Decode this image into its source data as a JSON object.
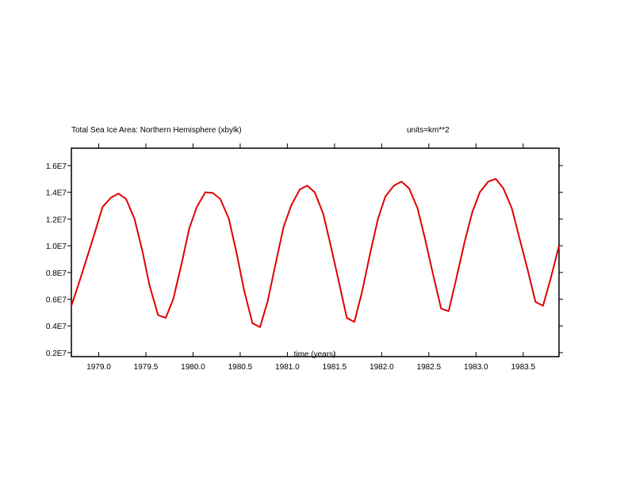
{
  "chart_data": {
    "type": "line",
    "title": "Total Sea Ice Area: Northern Hemisphere (xbylk)",
    "units": "units=km**2",
    "xlabel": "time (years)",
    "ylabel": "",
    "xlim": [
      1978.71,
      1983.88
    ],
    "ylim": [
      1700000.0,
      17300000.0
    ],
    "xticks": [
      1979.0,
      1979.5,
      1980.0,
      1980.5,
      1981.0,
      1981.5,
      1982.0,
      1982.5,
      1983.0,
      1983.5
    ],
    "xtick_labels": [
      "1979.0",
      "1979.5",
      "1980.0",
      "1980.5",
      "1981.0",
      "1981.5",
      "1982.0",
      "1982.5",
      "1983.0",
      "1983.5"
    ],
    "yticks": [
      2000000,
      4000000,
      6000000,
      8000000,
      10000000,
      12000000,
      14000000,
      16000000
    ],
    "ytick_labels": [
      "0.2E7",
      "0.4E7",
      "0.6E7",
      "0.8E7",
      "1.0E7",
      "1.2E7",
      "1.4E7",
      "1.6E7"
    ],
    "line_color": "#e00000",
    "series": [
      {
        "x": [
          1978.71,
          1978.79,
          1978.88,
          1978.96,
          1979.04,
          1979.13,
          1979.21,
          1979.29,
          1979.38,
          1979.46,
          1979.54,
          1979.63,
          1979.71,
          1979.79,
          1979.88,
          1979.96,
          1980.04,
          1980.13,
          1980.21,
          1980.29,
          1980.38,
          1980.46,
          1980.54,
          1980.63,
          1980.71,
          1980.79,
          1980.88,
          1980.96,
          1981.04,
          1981.13,
          1981.21,
          1981.29,
          1981.38,
          1981.46,
          1981.54,
          1981.63,
          1981.71,
          1981.79,
          1981.88,
          1981.96,
          1982.04,
          1982.13,
          1982.21,
          1982.29,
          1982.38,
          1982.46,
          1982.54,
          1982.63,
          1982.71,
          1982.79,
          1982.88,
          1982.96,
          1983.04,
          1983.13,
          1983.21,
          1983.29,
          1983.38,
          1983.46,
          1983.54,
          1983.63,
          1983.71,
          1983.79,
          1983.88
        ],
        "values": [
          5500000,
          7200000,
          9200000,
          11000000,
          12900000,
          13600000,
          13900000,
          13500000,
          12000000,
          9700000,
          7000000,
          4800000,
          4600000,
          6000000,
          8700000,
          11300000,
          12900000,
          14000000,
          13950000,
          13500000,
          12000000,
          9500000,
          6700000,
          4200000,
          3900000,
          5800000,
          8800000,
          11400000,
          13000000,
          14200000,
          14500000,
          14000000,
          12400000,
          10000000,
          7500000,
          4600000,
          4300000,
          6500000,
          9500000,
          12000000,
          13700000,
          14500000,
          14800000,
          14300000,
          12800000,
          10500000,
          8000000,
          5300000,
          5100000,
          7500000,
          10300000,
          12500000,
          14000000,
          14800000,
          15000000,
          14300000,
          12800000,
          10600000,
          8400000,
          5800000,
          5500000,
          7500000,
          10000000
        ]
      }
    ]
  }
}
